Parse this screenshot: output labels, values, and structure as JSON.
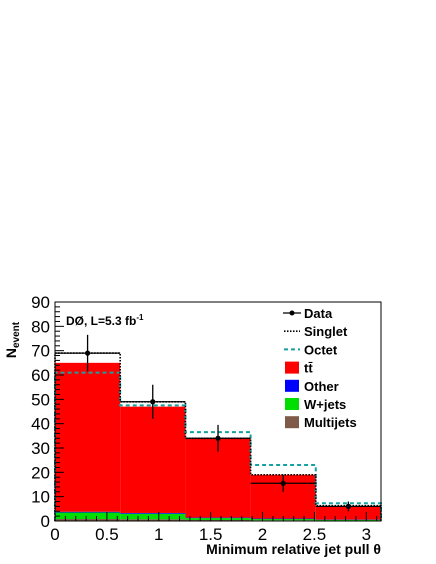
{
  "chart_data": {
    "type": "bar",
    "xlabel": "Minimum relative jet pull θ",
    "ylabel_main": "N",
    "ylabel_sub": "event",
    "annotation_main": "DØ, L=5.3 fb",
    "annotation_sup": "-1",
    "xlim": [
      0,
      3.1416
    ],
    "ylim": [
      0,
      90
    ],
    "x_ticks": [
      "0",
      "0.5",
      "1",
      "1.5",
      "2",
      "2.5",
      "3"
    ],
    "y_ticks": [
      "0",
      "10",
      "20",
      "30",
      "40",
      "50",
      "60",
      "70",
      "80",
      "90"
    ],
    "bin_edges": [
      0,
      0.628,
      1.257,
      1.885,
      2.513,
      3.1416
    ],
    "stacked_components": [
      {
        "name": "Multijets",
        "color": "#7f5a48",
        "values": [
          0.8,
          0.7,
          0.4,
          0.3,
          0.2
        ]
      },
      {
        "name": "W+jets",
        "color": "#00dd00",
        "values": [
          2.7,
          2.3,
          0.8,
          0.5,
          0.3
        ]
      },
      {
        "name": "Other",
        "color": "#0000ff",
        "values": [
          0.3,
          0.3,
          0.2,
          0.2,
          0.1
        ]
      },
      {
        "name": "tt̄",
        "color": "#ff0000",
        "values": [
          61.2,
          43.7,
          32.6,
          18.0,
          5.6
        ]
      }
    ],
    "singlet": {
      "name": "Singlet",
      "values": [
        69,
        49,
        34,
        19,
        6.3
      ]
    },
    "octet": {
      "name": "Octet",
      "values": [
        61,
        47.5,
        36.5,
        23,
        7.3
      ]
    },
    "data_points": {
      "name": "Data",
      "x": [
        0.314,
        0.942,
        1.571,
        2.199,
        2.827
      ],
      "y": [
        69,
        49,
        34,
        15.5,
        6
      ],
      "yerr": [
        7.5,
        7,
        5.5,
        3.5,
        2
      ]
    },
    "legend": [
      "Data",
      "Singlet",
      "Octet",
      "tt̄",
      "Other",
      "W+jets",
      "Multijets"
    ],
    "legend_position": "top-right"
  }
}
